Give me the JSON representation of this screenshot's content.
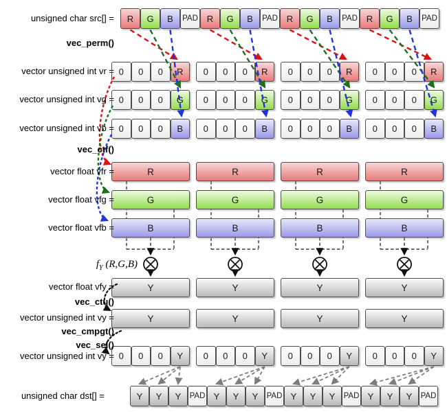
{
  "colors": {
    "red_top": "#f8d6d6",
    "red_bottom": "#e87a7a",
    "green_top": "#edfae1",
    "green_bottom": "#94dd4e",
    "blue_top": "#e7e7fa",
    "blue_bottom": "#9a9ae8",
    "white_top": "#ffffff",
    "white_bottom": "#ededed",
    "gray_top": "#fafafa",
    "gray_bottom": "#b9b9b9",
    "cell_border": "#4d4d4d",
    "arrow_red": "#dd1111",
    "arrow_green": "#1c701c",
    "arrow_blue": "#2233dd",
    "arrow_black": "#111111",
    "arrow_gray": "#7d7d7d"
  },
  "cell_styles": {
    "R": "red",
    "G": "green",
    "B": "blue",
    "PAD": "white",
    "0": "white",
    "Y": "gray"
  },
  "left_labels": [
    {
      "id": "src",
      "text": "unsigned char src[] =",
      "bold": false
    },
    {
      "id": "vec_perm",
      "text": "vec_perm()",
      "bold": true
    },
    {
      "id": "vr",
      "text": "vector unsigned int vr =",
      "bold": false
    },
    {
      "id": "vg",
      "text": "vector unsigned int vg =",
      "bold": false
    },
    {
      "id": "vb",
      "text": "vector unsigned int vb =",
      "bold": false
    },
    {
      "id": "vec_ctf",
      "text": "vec_ctf()",
      "bold": true
    },
    {
      "id": "vfr",
      "text": "vector float vfr =",
      "bold": false
    },
    {
      "id": "vfg",
      "text": "vector float vfg =",
      "bold": false
    },
    {
      "id": "vfb",
      "text": "vector float vfb =",
      "bold": false
    },
    {
      "id": "vfy",
      "text": "vector float vfy =",
      "bold": false
    },
    {
      "id": "vec_ctu",
      "text": "vec_ctu()",
      "bold": true
    },
    {
      "id": "vy_int",
      "text": "vector unsigned int vy =",
      "bold": false
    },
    {
      "id": "vec_cmpgt",
      "text": "vec_cmpgt()",
      "bold": true
    },
    {
      "id": "vec_sel",
      "text": "vec_sel()",
      "bold": true
    },
    {
      "id": "vy_sel",
      "text": "vector unsigned int vy =",
      "bold": false
    },
    {
      "id": "dst",
      "text": "unsigned char dst[] =",
      "bold": false
    }
  ],
  "fy_label": {
    "fname": "f",
    "fsub": "Y",
    "args": " (R,G,B)"
  },
  "operator_symbol": "circled-times",
  "src_row": {
    "cells": [
      "R",
      "G",
      "B",
      "PAD",
      "R",
      "G",
      "B",
      "PAD",
      "R",
      "G",
      "B",
      "PAD",
      "R",
      "G",
      "B",
      "PAD"
    ]
  },
  "perm_rows": [
    {
      "id": "vr",
      "groups": [
        [
          "0",
          "0",
          "0",
          "R"
        ],
        [
          "0",
          "0",
          "0",
          "R"
        ],
        [
          "0",
          "0",
          "0",
          "R"
        ],
        [
          "0",
          "0",
          "0",
          "R"
        ]
      ]
    },
    {
      "id": "vg",
      "groups": [
        [
          "0",
          "0",
          "0",
          "G"
        ],
        [
          "0",
          "0",
          "0",
          "G"
        ],
        [
          "0",
          "0",
          "0",
          "G"
        ],
        [
          "0",
          "0",
          "0",
          "G"
        ]
      ]
    },
    {
      "id": "vb",
      "groups": [
        [
          "0",
          "0",
          "0",
          "B"
        ],
        [
          "0",
          "0",
          "0",
          "B"
        ],
        [
          "0",
          "0",
          "0",
          "B"
        ],
        [
          "0",
          "0",
          "0",
          "B"
        ]
      ]
    }
  ],
  "float_bars": [
    {
      "id": "vfr",
      "style": "red",
      "groups": [
        "R",
        "R",
        "R",
        "R"
      ]
    },
    {
      "id": "vfg",
      "style": "green",
      "groups": [
        "G",
        "G",
        "G",
        "G"
      ]
    },
    {
      "id": "vfb",
      "style": "blue",
      "groups": [
        "B",
        "B",
        "B",
        "B"
      ]
    }
  ],
  "y_bars": [
    {
      "id": "vfy",
      "style": "gray",
      "groups": [
        "Y",
        "Y",
        "Y",
        "Y"
      ]
    },
    {
      "id": "vy",
      "style": "gray",
      "groups": [
        "Y",
        "Y",
        "Y",
        "Y"
      ]
    }
  ],
  "sel_row": {
    "groups": [
      [
        "0",
        "0",
        "0",
        "Y"
      ],
      [
        "0",
        "0",
        "0",
        "Y"
      ],
      [
        "0",
        "0",
        "0",
        "Y"
      ],
      [
        "0",
        "0",
        "0",
        "Y"
      ]
    ]
  },
  "dst_row": {
    "cells": [
      "Y",
      "Y",
      "Y",
      "PAD",
      "Y",
      "Y",
      "Y",
      "PAD",
      "Y",
      "Y",
      "Y",
      "PAD",
      "Y",
      "Y",
      "Y",
      "PAD"
    ]
  }
}
